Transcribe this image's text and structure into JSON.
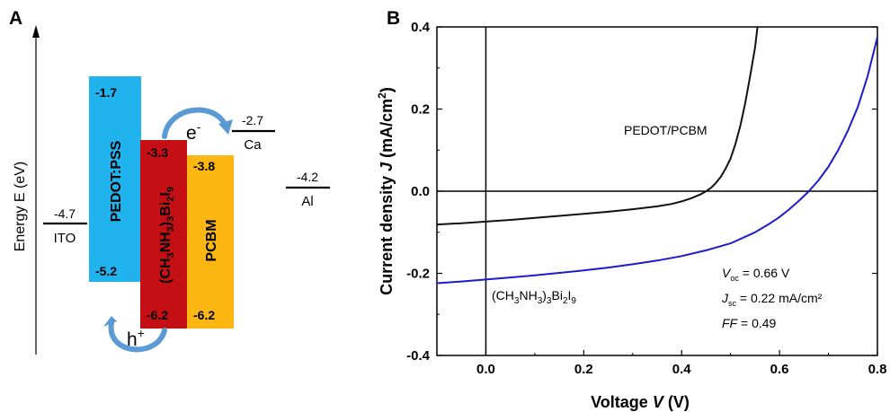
{
  "panel_a": {
    "label": "A",
    "y_axis_label": "Energy E (eV)",
    "bands": [
      {
        "name": "PEDOT:PSS",
        "top_value": "-1.7",
        "bottom_value": "-5.2",
        "top": -1.7,
        "bottom": -5.2,
        "color": "#21b3ee"
      },
      {
        "name": "(CH3NH3)3Bi2I9",
        "top_value": "-3.3",
        "bottom_value": "-6.2",
        "top": -3.3,
        "bottom": -6.2,
        "color": "#c40f14"
      },
      {
        "name": "PCBM",
        "top_value": "-3.8",
        "bottom_value": "-6.2",
        "top": -3.8,
        "bottom": -6.2,
        "color": "#fcb713"
      }
    ],
    "electrodes": [
      {
        "name": "ITO",
        "value_label": "-4.7",
        "value": -4.7
      },
      {
        "name": "Ca",
        "value_label": "-2.7",
        "value": -2.7
      },
      {
        "name": "Al",
        "value_label": "-4.2",
        "value": -4.2
      }
    ],
    "electron_label": "e",
    "electron_sup": "-",
    "hole_label": "h",
    "hole_sup": "+",
    "arrow_color": "#5b9bd5"
  },
  "panel_b": {
    "label": "B",
    "curve_labels": {
      "pedot": "PEDOT/PCBM"
    },
    "annotations": {
      "voc_value": " = 0.66 V",
      "jsc_value": " = 0.22 mA/cm²",
      "ff_label": "FF",
      "ff_value": " = 0.49"
    }
  },
  "chart_data": {
    "type": "line",
    "title": "",
    "xlabel": "Voltage V (V)",
    "ylabel": "Current density J (mA/cm2)",
    "xlim": [
      -0.1,
      0.8
    ],
    "ylim": [
      -0.4,
      0.4
    ],
    "xticks": [
      0.0,
      0.2,
      0.4,
      0.6,
      0.8
    ],
    "xtick_labels": [
      "0.0",
      "0.2",
      "0.4",
      "0.6",
      "0.8"
    ],
    "yticks": [
      -0.4,
      -0.2,
      0.0,
      0.2,
      0.4
    ],
    "ytick_labels": [
      "-0.4",
      "-0.2",
      "0.0",
      "0.2",
      "0.4"
    ],
    "grid": false,
    "zero_lines": true,
    "series": [
      {
        "name": "PEDOT/PCBM",
        "color": "#111111",
        "x": [
          -0.1,
          -0.05,
          0.0,
          0.05,
          0.1,
          0.15,
          0.2,
          0.25,
          0.3,
          0.35,
          0.38,
          0.4,
          0.42,
          0.44,
          0.45,
          0.46,
          0.47,
          0.48,
          0.49,
          0.5,
          0.51,
          0.52,
          0.53,
          0.54,
          0.55,
          0.555
        ],
        "y": [
          -0.081,
          -0.078,
          -0.074,
          -0.07,
          -0.065,
          -0.06,
          -0.055,
          -0.05,
          -0.044,
          -0.037,
          -0.031,
          -0.025,
          -0.017,
          -0.007,
          0.0,
          0.008,
          0.02,
          0.035,
          0.055,
          0.08,
          0.115,
          0.16,
          0.215,
          0.28,
          0.35,
          0.4
        ]
      },
      {
        "name": "(CH3NH3)3Bi2I9",
        "color": "#1c1ccc",
        "x": [
          -0.1,
          -0.05,
          0.0,
          0.05,
          0.1,
          0.15,
          0.2,
          0.25,
          0.3,
          0.35,
          0.4,
          0.45,
          0.5,
          0.55,
          0.58,
          0.6,
          0.62,
          0.64,
          0.66,
          0.68,
          0.7,
          0.72,
          0.74,
          0.76,
          0.78,
          0.8
        ],
        "y": [
          -0.224,
          -0.22,
          -0.215,
          -0.21,
          -0.205,
          -0.199,
          -0.193,
          -0.186,
          -0.178,
          -0.169,
          -0.158,
          -0.144,
          -0.127,
          -0.1,
          -0.079,
          -0.063,
          -0.044,
          -0.023,
          0.0,
          0.027,
          0.06,
          0.1,
          0.148,
          0.205,
          0.28,
          0.375
        ]
      }
    ]
  }
}
